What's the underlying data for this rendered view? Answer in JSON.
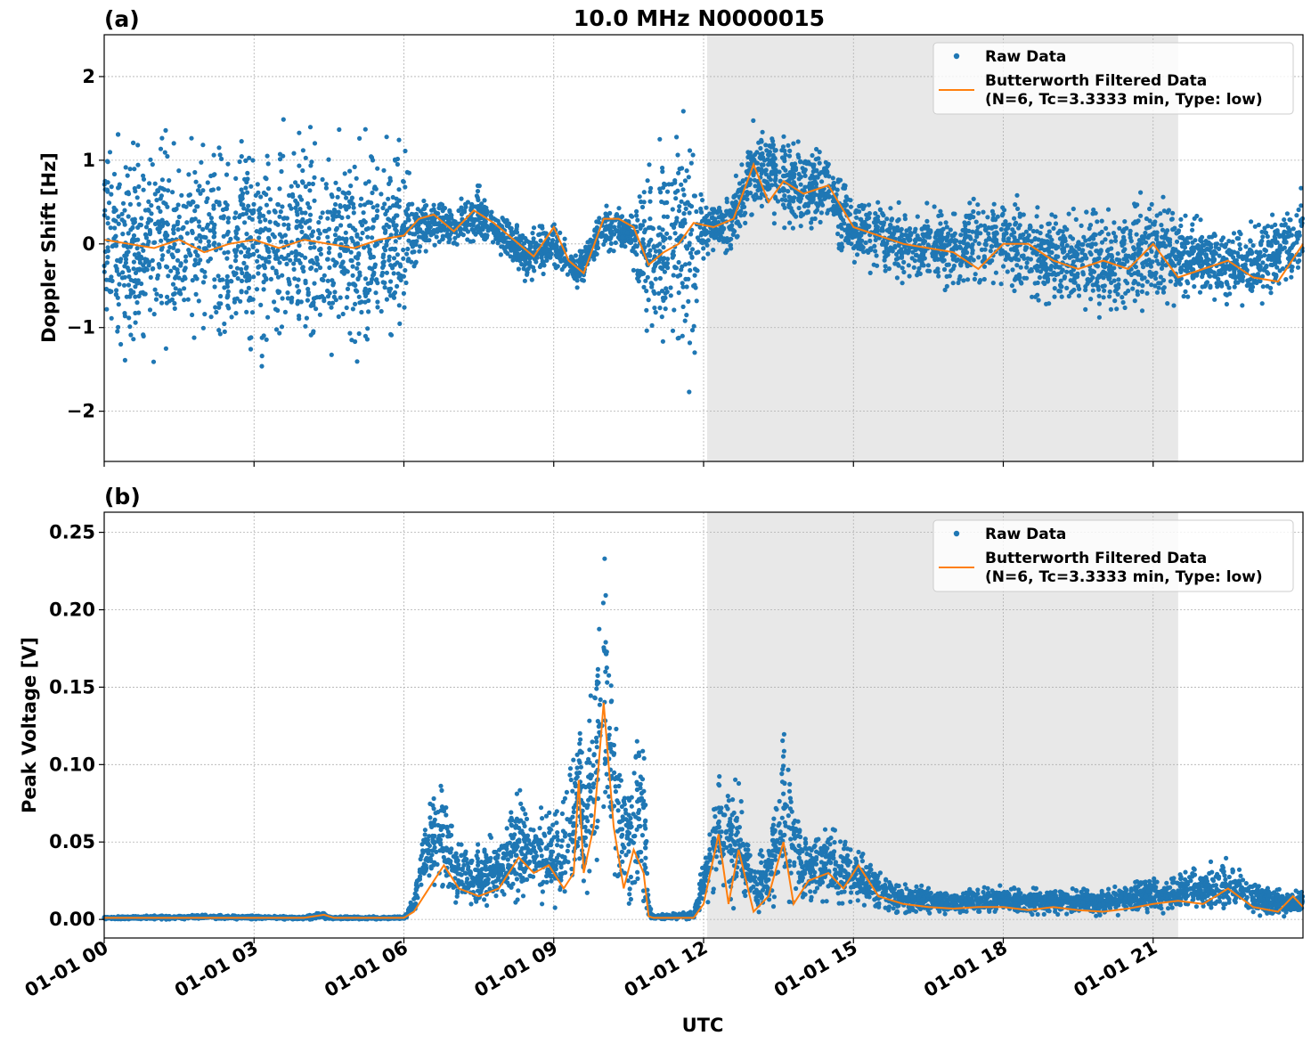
{
  "figure": {
    "title": "10.0 MHz N0000015",
    "xlabel": "UTC",
    "x_tick_labels": [
      "01-01 00",
      "01-01 03",
      "01-01 06",
      "01-01 09",
      "01-01 12",
      "01-01 15",
      "01-01 18",
      "01-01 21"
    ],
    "colors": {
      "raw": "#1f77b4",
      "filtered": "#ff7f0e",
      "shade": "#e8e8e8",
      "grid": "#b0b0b0"
    }
  },
  "chart_data": [
    {
      "type": "scatter",
      "panel_label": "(a)",
      "ylabel": "Doppler Shift [Hz]",
      "xlim_hours": [
        0,
        24
      ],
      "ylim": [
        -2.6,
        2.5
      ],
      "y_ticks": [
        2,
        1,
        0,
        -1,
        -2
      ],
      "y_tick_labels": [
        "2",
        "1",
        "0",
        "−1",
        "−2"
      ],
      "grid": true,
      "legend_position": "top-right",
      "shaded_region_hours": [
        12.07,
        21.5
      ],
      "series": [
        {
          "name": "Raw Data",
          "marker": "dot",
          "envelope": {
            "x_hours": [
              0,
              1,
              2,
              3,
              4,
              5,
              6,
              6.2,
              6.7,
              7.0,
              7.5,
              8.0,
              8.5,
              9.0,
              9.5,
              10.0,
              10.5,
              10.8,
              11.0,
              11.5,
              11.7,
              12.0,
              12.5,
              13.0,
              13.5,
              14.0,
              14.5,
              15.0,
              16.0,
              17.0,
              18.0,
              19.0,
              20.0,
              21.0,
              22.0,
              23.0,
              24.0
            ],
            "low": [
              -1.4,
              -1.5,
              -1.35,
              -1.6,
              -1.5,
              -1.5,
              -1.3,
              -0.3,
              0.0,
              -0.1,
              0.0,
              -0.2,
              -0.5,
              -0.3,
              -0.55,
              -0.1,
              -0.1,
              -1.2,
              -1.4,
              -1.5,
              -2.2,
              -0.2,
              -0.1,
              0.3,
              0.2,
              0.1,
              0.1,
              -0.3,
              -0.5,
              -0.6,
              -0.6,
              -0.8,
              -0.9,
              -0.8,
              -0.7,
              -0.8,
              -0.5
            ],
            "high": [
              1.5,
              1.5,
              1.3,
              1.6,
              1.5,
              1.4,
              1.4,
              0.5,
              0.6,
              0.45,
              0.75,
              0.3,
              0.2,
              0.35,
              -0.1,
              0.5,
              0.4,
              1.0,
              1.4,
              1.6,
              1.7,
              0.5,
              0.6,
              1.5,
              1.45,
              1.3,
              1.2,
              0.6,
              0.5,
              0.5,
              0.7,
              0.5,
              0.4,
              0.7,
              0.3,
              0.3,
              0.7
            ]
          }
        },
        {
          "name": "Butterworth Filtered Data\n(N=6, Tc=3.3333 min, Type: low)",
          "legend_lines": [
            "Butterworth Filtered Data",
            "(N=6, Tc=3.3333 min, Type: low)"
          ],
          "x_hours": [
            0,
            0.5,
            1,
            1.5,
            2,
            2.5,
            3,
            3.5,
            4,
            4.5,
            5,
            5.5,
            6,
            6.3,
            6.6,
            7.0,
            7.4,
            7.8,
            8.2,
            8.6,
            9.0,
            9.3,
            9.6,
            10.0,
            10.3,
            10.6,
            10.9,
            11.2,
            11.5,
            11.8,
            12.2,
            12.6,
            13.0,
            13.3,
            13.6,
            14.0,
            14.5,
            15.0,
            15.5,
            16.0,
            16.5,
            17.0,
            17.5,
            18.0,
            18.5,
            19.0,
            19.5,
            20.0,
            20.5,
            21.0,
            21.5,
            22.0,
            22.5,
            23.0,
            23.5,
            24.0
          ],
          "values": [
            0.05,
            0.0,
            -0.05,
            0.05,
            -0.1,
            0.0,
            0.05,
            -0.05,
            0.05,
            0.0,
            -0.05,
            0.05,
            0.1,
            0.3,
            0.35,
            0.15,
            0.4,
            0.25,
            0.05,
            -0.15,
            0.2,
            -0.2,
            -0.35,
            0.3,
            0.3,
            0.2,
            -0.25,
            -0.1,
            0.0,
            0.25,
            0.2,
            0.3,
            0.95,
            0.5,
            0.75,
            0.6,
            0.7,
            0.2,
            0.1,
            0.0,
            -0.05,
            -0.1,
            -0.3,
            0.0,
            0.0,
            -0.2,
            -0.3,
            -0.2,
            -0.3,
            0.0,
            -0.4,
            -0.3,
            -0.2,
            -0.4,
            -0.45,
            0.0
          ]
        }
      ]
    },
    {
      "type": "scatter",
      "panel_label": "(b)",
      "ylabel": "Peak Voltage [V]",
      "xlim_hours": [
        0,
        24
      ],
      "ylim": [
        -0.012,
        0.263
      ],
      "y_ticks": [
        0.25,
        0.2,
        0.15,
        0.1,
        0.05,
        0.0
      ],
      "y_tick_labels": [
        "0.25",
        "0.20",
        "0.15",
        "0.10",
        "0.05",
        "0.00"
      ],
      "grid": true,
      "legend_position": "top-right",
      "shaded_region_hours": [
        12.07,
        21.5
      ],
      "series": [
        {
          "name": "Raw Data",
          "marker": "dot",
          "envelope": {
            "x_hours": [
              0,
              2,
              4,
              4.4,
              4.5,
              6.0,
              6.2,
              6.4,
              6.7,
              7.0,
              7.5,
              8.0,
              8.3,
              8.8,
              9.2,
              9.5,
              9.6,
              10.0,
              10.2,
              10.5,
              10.8,
              10.9,
              11.0,
              11.8,
              12.0,
              12.3,
              12.7,
              13.0,
              13.3,
              13.6,
              14.0,
              14.5,
              15.0,
              15.5,
              16.0,
              17.0,
              18.0,
              19.0,
              20.0,
              21.0,
              22.0,
              22.5,
              23.0,
              23.5,
              24.0
            ],
            "low": [
              0.0,
              0.0,
              0.0,
              0.0,
              0.0,
              0.0,
              0.005,
              0.015,
              0.01,
              0.008,
              0.005,
              0.01,
              0.008,
              0.01,
              0.005,
              0.02,
              0.01,
              0.04,
              0.02,
              0.01,
              0.005,
              0.0,
              0.0,
              0.0,
              0.005,
              0.01,
              0.005,
              0.003,
              0.003,
              0.01,
              0.005,
              0.005,
              0.01,
              0.005,
              0.003,
              0.003,
              0.003,
              0.003,
              0.002,
              0.003,
              0.003,
              0.005,
              0.002,
              0.001,
              0.002
            ],
            "high": [
              0.002,
              0.003,
              0.002,
              0.005,
              0.002,
              0.002,
              0.015,
              0.06,
              0.109,
              0.06,
              0.05,
              0.06,
              0.09,
              0.07,
              0.08,
              0.175,
              0.09,
              0.25,
              0.16,
              0.1,
              0.14,
              0.01,
              0.003,
              0.005,
              0.04,
              0.105,
              0.09,
              0.04,
              0.05,
              0.132,
              0.06,
              0.065,
              0.05,
              0.035,
              0.025,
              0.02,
              0.022,
              0.022,
              0.02,
              0.03,
              0.035,
              0.043,
              0.025,
              0.02,
              0.018
            ]
          }
        },
        {
          "name": "Butterworth Filtered Data\n(N=6, Tc=3.3333 min, Type: low)",
          "legend_lines": [
            "Butterworth Filtered Data",
            "(N=6, Tc=3.3333 min, Type: low)"
          ],
          "x_hours": [
            0,
            2,
            4,
            4.4,
            4.6,
            6.0,
            6.2,
            6.5,
            6.8,
            7.1,
            7.5,
            7.9,
            8.3,
            8.6,
            8.9,
            9.2,
            9.4,
            9.5,
            9.6,
            9.8,
            10.0,
            10.2,
            10.4,
            10.6,
            10.8,
            10.9,
            11.0,
            11.8,
            12.0,
            12.3,
            12.5,
            12.7,
            13.0,
            13.3,
            13.6,
            13.8,
            14.1,
            14.5,
            14.8,
            15.1,
            15.5,
            16.0,
            16.5,
            17.0,
            17.5,
            18.0,
            18.5,
            19.0,
            19.5,
            20.0,
            20.5,
            21.0,
            21.5,
            22.0,
            22.5,
            23.0,
            23.5,
            23.8,
            24.0
          ],
          "values": [
            0.001,
            0.001,
            0.001,
            0.003,
            0.001,
            0.001,
            0.005,
            0.02,
            0.035,
            0.02,
            0.015,
            0.02,
            0.04,
            0.03,
            0.035,
            0.02,
            0.03,
            0.09,
            0.03,
            0.06,
            0.14,
            0.06,
            0.02,
            0.045,
            0.03,
            0.002,
            0.001,
            0.001,
            0.01,
            0.055,
            0.01,
            0.045,
            0.005,
            0.015,
            0.05,
            0.01,
            0.025,
            0.03,
            0.02,
            0.035,
            0.015,
            0.01,
            0.008,
            0.007,
            0.008,
            0.008,
            0.006,
            0.008,
            0.006,
            0.005,
            0.007,
            0.01,
            0.012,
            0.01,
            0.02,
            0.008,
            0.005,
            0.015,
            0.008
          ]
        }
      ]
    }
  ]
}
